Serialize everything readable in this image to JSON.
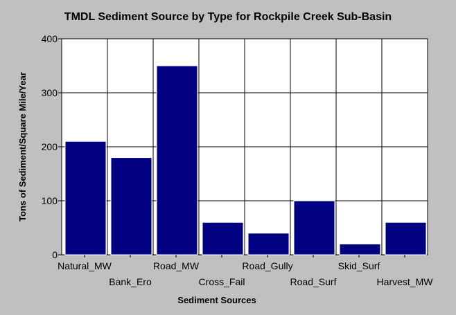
{
  "chart_data": {
    "type": "bar",
    "title": "TMDL Sediment Source by Type for Rockpile Creek Sub-Basin",
    "xlabel": "Sediment Sources",
    "ylabel": "Tons of Sediment/Square Mile/Year",
    "categories": [
      "Natural_MW",
      "Bank_Ero",
      "Road_MW",
      "Cross_Fail",
      "Road_Gully",
      "Road_Surf",
      "Skid_Surf",
      "Harvest_MW"
    ],
    "values": [
      210,
      180,
      350,
      60,
      40,
      100,
      20,
      60
    ],
    "ylim": [
      0,
      400
    ],
    "yticks": [
      "0",
      "100",
      "200",
      "300",
      "400"
    ],
    "grid": true,
    "bar_color": "#000080",
    "background_color": "#c0c0c0",
    "plot_background": "#ffffff"
  }
}
